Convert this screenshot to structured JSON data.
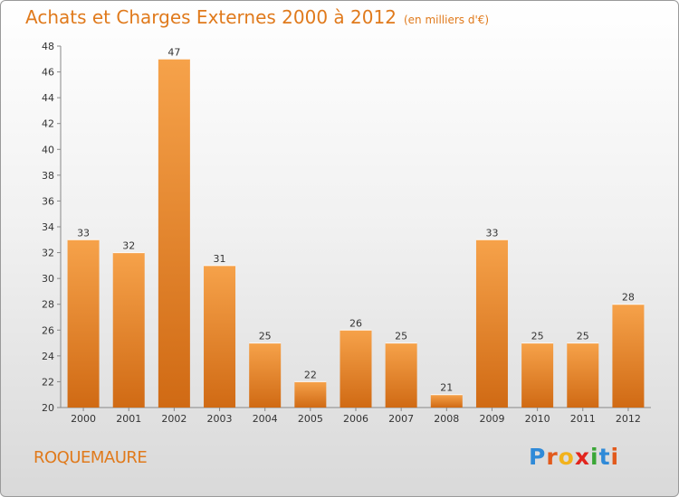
{
  "title": "Achats et Charges Externes 2000 à 2012",
  "unit": "(en milliers d'€)",
  "city": "ROQUEMAURE",
  "logo": {
    "letters": [
      "P",
      "r",
      "o",
      "x",
      "i",
      "t",
      "i"
    ],
    "colors": [
      "#2f8ad8",
      "#e25a1c",
      "#f2b21c",
      "#e2251e",
      "#3aa636",
      "#2f8ad8",
      "#e25a1c"
    ]
  },
  "colors": {
    "accent": "#e07a1c",
    "bar_top": "#f6a24a",
    "bar_bottom": "#d06a14"
  },
  "chart_data": {
    "type": "bar",
    "title": "Achats et Charges Externes 2000 à 2012",
    "subtitle": "(en milliers d'€)",
    "categories": [
      "2000",
      "2001",
      "2002",
      "2003",
      "2004",
      "2005",
      "2006",
      "2007",
      "2008",
      "2009",
      "2010",
      "2011",
      "2012"
    ],
    "values": [
      33,
      32,
      47,
      31,
      25,
      22,
      26,
      25,
      21,
      33,
      25,
      25,
      28
    ],
    "ylim": [
      20,
      48
    ],
    "yticks": [
      20,
      22,
      24,
      26,
      28,
      30,
      32,
      34,
      36,
      38,
      40,
      42,
      44,
      46,
      48
    ],
    "grid": false,
    "xlabel": "",
    "ylabel": ""
  }
}
